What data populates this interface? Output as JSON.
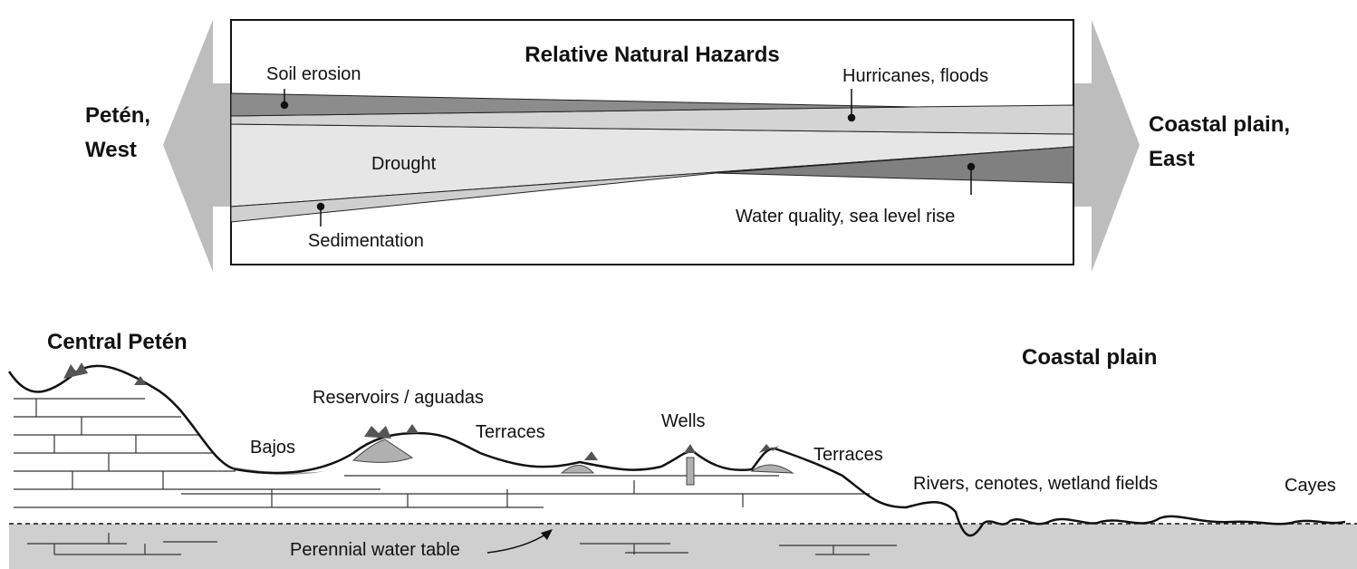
{
  "hazards": {
    "title": "Relative Natural Hazards",
    "west": [
      "Petén,",
      "West"
    ],
    "east": [
      "Coastal plain,",
      "East"
    ],
    "labels": [
      "Soil erosion",
      "Hurricanes, floods",
      "Drought",
      "Sedimentation",
      "Water quality, sea level rise"
    ]
  },
  "profile": {
    "regions": [
      "Central Petén",
      "Coastal plain"
    ],
    "features": [
      "Reservoirs / aguadas",
      "Bajos",
      "Terraces",
      "Wells",
      "Terraces",
      "Rivers, cenotes, wetland fields",
      "Cayes",
      "Perennial water table"
    ]
  }
}
